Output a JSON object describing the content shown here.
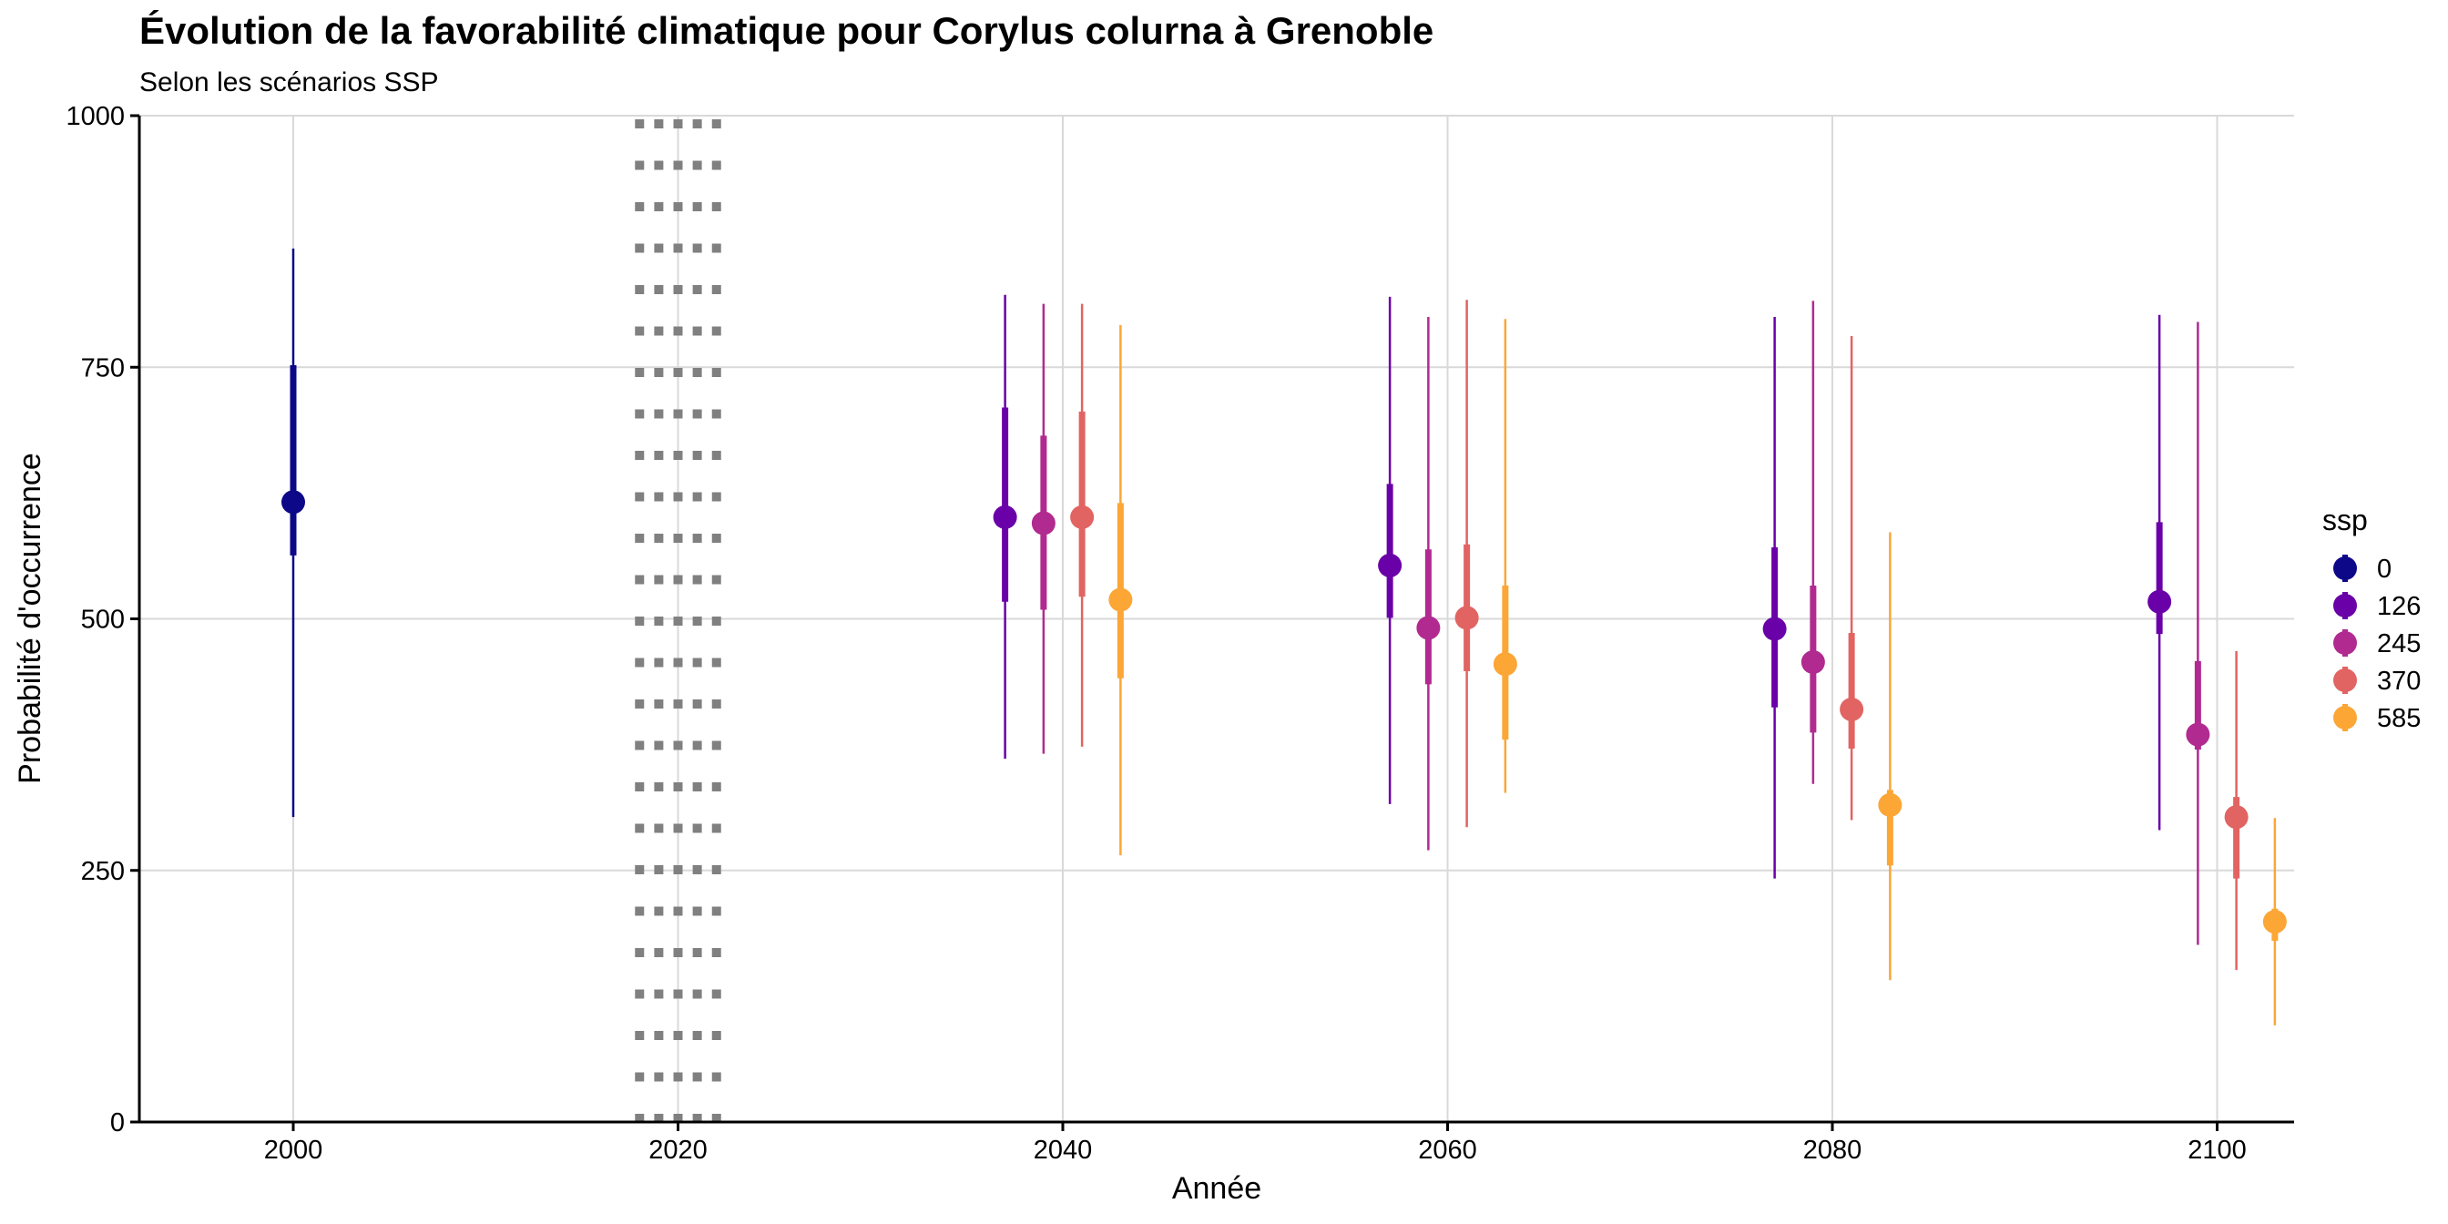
{
  "chart_data": {
    "type": "pointrange",
    "title": "Évolution de la favorabilité climatique pour Corylus colurna à Grenoble",
    "subtitle": "Selon les scénarios SSP",
    "xlabel": "Année",
    "ylabel": "Probabilité d'occurrence",
    "xlim": [
      1992,
      2104
    ],
    "ylim": [
      0,
      1000
    ],
    "x_ticks": [
      2000,
      2020,
      2040,
      2060,
      2080,
      2100
    ],
    "y_ticks": [
      0,
      250,
      500,
      750,
      1000
    ],
    "grid": true,
    "reference_band": {
      "from": 2018,
      "to": 2022,
      "style": "dotted"
    },
    "legend": {
      "title": "ssp",
      "position": "right"
    },
    "series": [
      {
        "name": "0",
        "color": "#0D0887",
        "points": [
          {
            "x": 2000,
            "y": 616,
            "inner": [
              563,
              752
            ],
            "outer": [
              303,
              868
            ]
          }
        ]
      },
      {
        "name": "126",
        "color": "#6A00A8",
        "points": [
          {
            "x": 2037,
            "y": 601,
            "inner": [
              517,
              710
            ],
            "outer": [
              361,
              822
            ]
          },
          {
            "x": 2057,
            "y": 553,
            "inner": [
              501,
              634
            ],
            "outer": [
              316,
              820
            ]
          },
          {
            "x": 2077,
            "y": 490,
            "inner": [
              412,
              571
            ],
            "outer": [
              242,
              800
            ]
          },
          {
            "x": 2097,
            "y": 517,
            "inner": [
              485,
              596
            ],
            "outer": [
              290,
              802
            ]
          }
        ]
      },
      {
        "name": "245",
        "color": "#B12A90",
        "points": [
          {
            "x": 2039,
            "y": 595,
            "inner": [
              509,
              682
            ],
            "outer": [
              366,
              813
            ]
          },
          {
            "x": 2059,
            "y": 491,
            "inner": [
              435,
              569
            ],
            "outer": [
              270,
              800
            ]
          },
          {
            "x": 2079,
            "y": 457,
            "inner": [
              387,
              533
            ],
            "outer": [
              336,
              816
            ]
          },
          {
            "x": 2099,
            "y": 385,
            "inner": [
              370,
              458
            ],
            "outer": [
              176,
              795
            ]
          }
        ]
      },
      {
        "name": "370",
        "color": "#E16462",
        "points": [
          {
            "x": 2041,
            "y": 601,
            "inner": [
              522,
              706
            ],
            "outer": [
              373,
              813
            ]
          },
          {
            "x": 2061,
            "y": 501,
            "inner": [
              448,
              574
            ],
            "outer": [
              293,
              817
            ]
          },
          {
            "x": 2081,
            "y": 410,
            "inner": [
              371,
              486
            ],
            "outer": [
              300,
              781
            ]
          },
          {
            "x": 2101,
            "y": 303,
            "inner": [
              242,
              323
            ],
            "outer": [
              151,
              468
            ]
          }
        ]
      },
      {
        "name": "585",
        "color": "#FCA636",
        "points": [
          {
            "x": 2043,
            "y": 519,
            "inner": [
              441,
              615
            ],
            "outer": [
              265,
              792
            ]
          },
          {
            "x": 2063,
            "y": 455,
            "inner": [
              380,
              533
            ],
            "outer": [
              327,
              798
            ]
          },
          {
            "x": 2083,
            "y": 315,
            "inner": [
              255,
              330
            ],
            "outer": [
              141,
              586
            ]
          },
          {
            "x": 2103,
            "y": 199,
            "inner": [
              180,
              212
            ],
            "outer": [
              96,
              302
            ]
          }
        ]
      }
    ]
  }
}
